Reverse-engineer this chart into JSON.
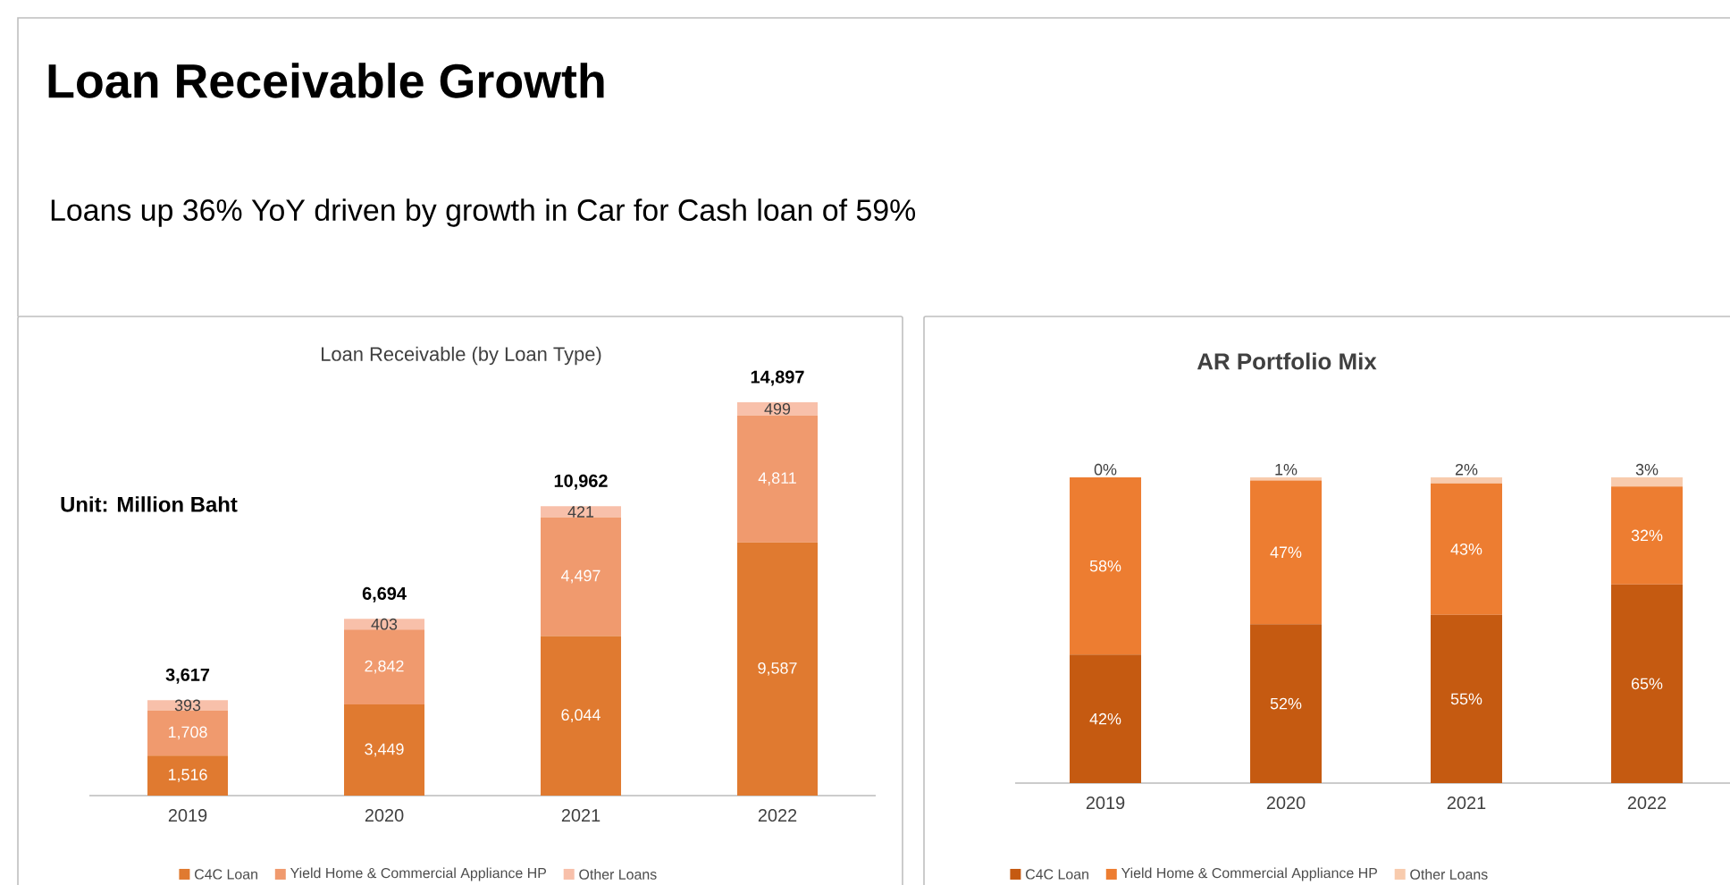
{
  "chart_data": [
    {
      "type": "other",
      "title": "Loan Receivable Growth",
      "subtitle": "Loans up 36% YoY driven by growth in Car for Cash loan of 59%"
    },
    {
      "type": "bar",
      "stacked": true,
      "title": "Loan Receivable (by Loan Type)",
      "categories": [
        "2019",
        "2020",
        "2021",
        "2022"
      ],
      "legend": "bottom",
      "annotations": [
        "Unit: Million Baht"
      ],
      "totals": [
        "3,617",
        "6,694",
        "10,962",
        "14,897"
      ],
      "series": [
        {
          "name": "C4C Loan",
          "color": "#e07a30",
          "values": [
            1516,
            3449,
            6044,
            9587
          ],
          "value_labels": [
            "1,516",
            "3,449",
            "6,044",
            "9,587"
          ]
        },
        {
          "name": "Yield Home & Commercial Appliance HP",
          "color": "#f09a6e",
          "values": [
            1708,
            2842,
            4497,
            4811
          ],
          "value_labels": [
            "1,708",
            "2,842",
            "4,497",
            "4,811"
          ]
        },
        {
          "name": "Other Loans",
          "color": "#f8c0aa",
          "values": [
            393,
            403,
            421,
            499
          ],
          "value_labels": [
            "393",
            "403",
            "421",
            "499"
          ]
        }
      ]
    },
    {
      "type": "bar",
      "stacked": true,
      "title": "AR Portfolio Mix",
      "categories": [
        "2019",
        "2020",
        "2021",
        "2022"
      ],
      "legend": "bottom",
      "series": [
        {
          "name": "C4C Loan",
          "color": "#c55a11",
          "values": [
            42,
            52,
            55,
            65
          ],
          "value_labels": [
            "42%",
            "52%",
            "55%",
            "65%"
          ]
        },
        {
          "name": "Yield Home & Commercial Appliance HP",
          "color": "#ed7d31",
          "values": [
            58,
            47,
            43,
            32
          ],
          "value_labels": [
            "58%",
            "47%",
            "43%",
            "32%"
          ]
        },
        {
          "name": "Other Loans",
          "color": "#f8cbad",
          "values": [
            0,
            1,
            2,
            3
          ],
          "value_labels": [
            "0%",
            "1%",
            "2%",
            "3%"
          ]
        }
      ]
    }
  ]
}
